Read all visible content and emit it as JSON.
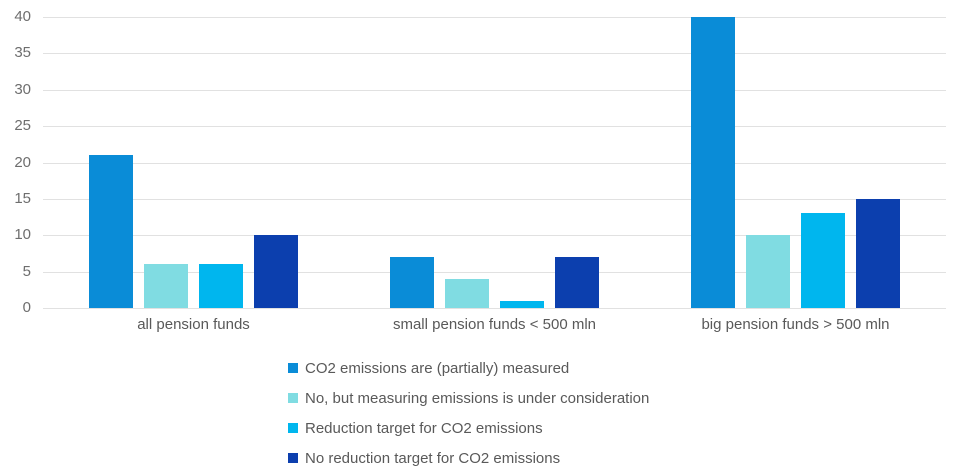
{
  "chart_data": {
    "type": "bar",
    "title": "",
    "xlabel": "",
    "ylabel": "",
    "categories": [
      "all pension funds",
      "small pension funds < 500 mln",
      "big pension funds > 500 mln"
    ],
    "series": [
      {
        "name": "CO2 emissions are (partially) measured",
        "color": "#0a8cd7",
        "values": [
          21,
          7,
          40
        ]
      },
      {
        "name": "No, but measuring emissions is under consideration",
        "color": "#80dce2",
        "values": [
          6,
          4,
          10
        ]
      },
      {
        "name": "Reduction target for CO2 emissions",
        "color": "#00b6ee",
        "values": [
          6,
          1,
          13
        ]
      },
      {
        "name": "No reduction target for CO2 emissions",
        "color": "#0c3fae",
        "values": [
          10,
          7,
          15
        ]
      }
    ],
    "ylim": [
      0,
      40
    ],
    "ytick_step": 5,
    "ytick_labels": [
      "0",
      "5",
      "10",
      "15",
      "20",
      "25",
      "30",
      "35",
      "40"
    ],
    "grid": true,
    "legend_position": "bottom-center"
  },
  "colors": {
    "background": "#ffffff",
    "gridline": "#e1e1e1",
    "tick_label": "#6e6e6e",
    "category_label": "#595959",
    "legend_label": "#595959"
  }
}
